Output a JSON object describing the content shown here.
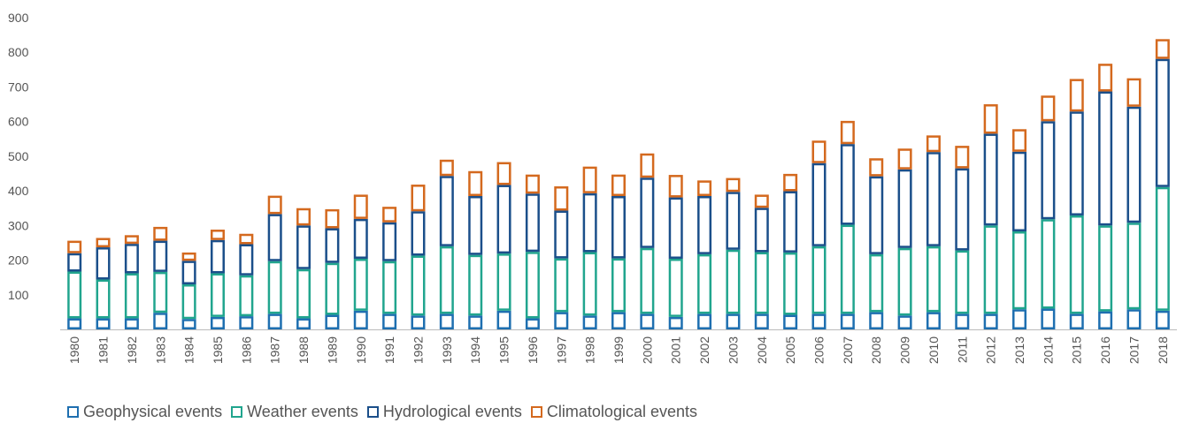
{
  "chart_data": {
    "type": "bar",
    "stacked": true,
    "categories": [
      "1980",
      "1981",
      "1982",
      "1983",
      "1984",
      "1985",
      "1986",
      "1987",
      "1988",
      "1989",
      "1990",
      "1991",
      "1992",
      "1993",
      "1994",
      "1995",
      "1996",
      "1997",
      "1998",
      "1999",
      "2000",
      "2001",
      "2002",
      "2003",
      "2004",
      "2005",
      "2006",
      "2007",
      "2008",
      "2009",
      "2010",
      "2011",
      "2012",
      "2013",
      "2014",
      "2015",
      "2016",
      "2017",
      "2018"
    ],
    "ylim": [
      0,
      900
    ],
    "yticks": [
      100,
      200,
      300,
      400,
      500,
      600,
      700,
      800,
      900
    ],
    "grid": false,
    "legend_position": "bottom-left",
    "series": [
      {
        "name": "Geophysical events",
        "color": "#1e6fb0",
        "values": [
          32,
          32,
          32,
          48,
          30,
          36,
          38,
          45,
          32,
          42,
          54,
          45,
          40,
          45,
          40,
          54,
          32,
          50,
          40,
          50,
          45,
          36,
          45,
          45,
          45,
          42,
          45,
          45,
          50,
          40,
          50,
          45,
          45,
          58,
          60,
          45,
          52,
          58,
          54
        ]
      },
      {
        "name": "Weather events",
        "color": "#21a58e",
        "values": [
          135,
          112,
          130,
          118,
          100,
          126,
          118,
          152,
          142,
          150,
          150,
          152,
          173,
          195,
          175,
          165,
          192,
          155,
          183,
          155,
          190,
          168,
          172,
          185,
          178,
          180,
          195,
          257,
          167,
          195,
          190,
          183,
          255,
          225,
          258,
          284,
          248,
          250,
          357
        ]
      },
      {
        "name": "Hydrological events",
        "color": "#1b4f8a",
        "values": [
          53,
          93,
          85,
          90,
          68,
          96,
          90,
          136,
          126,
          100,
          115,
          112,
          128,
          203,
          170,
          198,
          168,
          138,
          170,
          180,
          203,
          177,
          168,
          167,
          128,
          177,
          240,
          233,
          225,
          227,
          272,
          237,
          265,
          230,
          283,
          300,
          387,
          335,
          370
        ]
      },
      {
        "name": "Climatological events",
        "color": "#d4691e",
        "values": [
          36,
          27,
          25,
          40,
          24,
          30,
          30,
          53,
          50,
          55,
          70,
          45,
          77,
          47,
          72,
          66,
          55,
          70,
          77,
          62,
          70,
          65,
          45,
          40,
          38,
          50,
          65,
          67,
          52,
          60,
          48,
          65,
          85,
          65,
          74,
          94,
          80,
          82,
          57
        ]
      }
    ]
  }
}
